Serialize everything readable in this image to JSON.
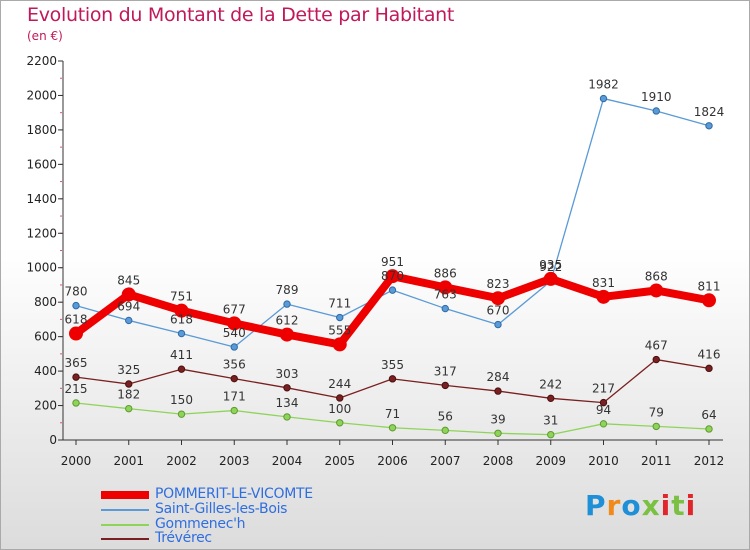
{
  "title": "Evolution du Montant de la Dette par Habitant",
  "subtitle": "(en €)",
  "logo": {
    "text": "Proxiti",
    "colors": [
      "#1f8fd8",
      "#f08a1c",
      "#1f8fd8",
      "#7ac143",
      "#e0262a",
      "#7ac143",
      "#e0262a"
    ]
  },
  "chart_data": {
    "type": "line",
    "x": [
      "2000",
      "2001",
      "2002",
      "2003",
      "2004",
      "2005",
      "2006",
      "2007",
      "2008",
      "2009",
      "2010",
      "2011",
      "2012"
    ],
    "ylim": [
      0,
      2200
    ],
    "yticks": [
      "0",
      "200",
      "400",
      "600",
      "800",
      "1000",
      "1200",
      "1400",
      "1600",
      "1800",
      "2000",
      "2200"
    ],
    "grid": false,
    "legend_position": "bottom-left",
    "series": [
      {
        "name": "POMMERIT-LE-VICOMTE",
        "color": "#ee0000",
        "values": [
          618,
          845,
          751,
          677,
          612,
          555,
          951,
          886,
          823,
          935,
          831,
          868,
          811
        ]
      },
      {
        "name": "Saint-Gilles-les-Bois",
        "color": "#5a9ad6",
        "values": [
          780,
          694,
          618,
          540,
          789,
          711,
          870,
          763,
          670,
          922,
          1982,
          1910,
          1824
        ]
      },
      {
        "name": "Gommenec'h",
        "color": "#8fd45a",
        "values": [
          215,
          182,
          150,
          171,
          134,
          100,
          71,
          56,
          39,
          31,
          94,
          79,
          64
        ]
      },
      {
        "name": "Trévérec",
        "color": "#7a2020",
        "values": [
          365,
          325,
          411,
          356,
          303,
          244,
          355,
          317,
          284,
          242,
          217,
          467,
          416
        ]
      }
    ],
    "data_labels": [
      [
        "618",
        "845",
        "751",
        "677",
        "612",
        "555",
        "951",
        "886",
        "823",
        "935",
        "831",
        "868",
        "811"
      ],
      [
        "780",
        "694",
        "618",
        "540",
        "789",
        "711",
        "870",
        "763",
        "670",
        "922",
        "1982",
        "1910",
        "1824"
      ],
      [
        "215",
        "182",
        "150",
        "171",
        "134",
        "100",
        "71",
        "56",
        "39",
        "31",
        "94",
        "79",
        "64"
      ],
      [
        "365",
        "325",
        "411",
        "356",
        "303",
        "244",
        "355",
        "317",
        "284",
        "242",
        "217",
        "467",
        "416"
      ]
    ]
  }
}
